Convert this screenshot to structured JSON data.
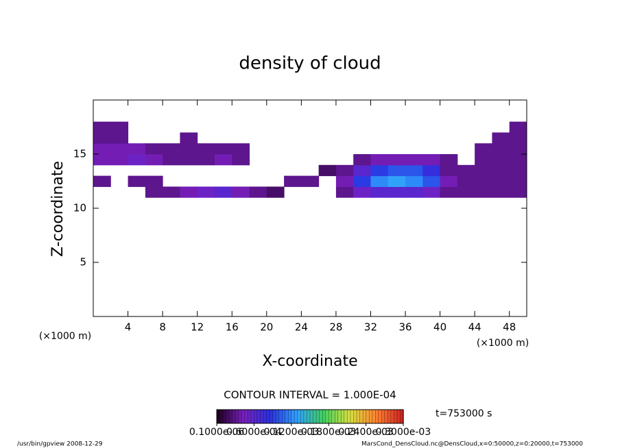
{
  "chart_data": {
    "type": "heatmap",
    "title": "density of cloud",
    "x_label": "X-coordinate",
    "y_label": "Z-coordinate",
    "x_unit": "(×1000 m)",
    "contour_interval": "CONTOUR INTERVAL = 1.000E-04",
    "time_label": "t=753000 s",
    "footer_left": "/usr/bin/gpview   2008-12-29",
    "footer_right": "MarsCond_DensCloud.nc@DensCloud,x=0:50000,z=0:20000,t=753000",
    "xlim": [
      0,
      50
    ],
    "xticks": [
      4,
      8,
      12,
      16,
      20,
      24,
      28,
      32,
      36,
      40,
      44,
      48
    ],
    "ylim": [
      0,
      20
    ],
    "yticks": [
      5,
      10,
      15
    ],
    "x": [
      1,
      3,
      5,
      7,
      9,
      11,
      13,
      15,
      17,
      19,
      21,
      23,
      25,
      27,
      29,
      31,
      33,
      35,
      37,
      39,
      41,
      43,
      45,
      47,
      49
    ],
    "y": [
      11.5,
      12.5,
      13.5,
      14.5,
      15.5,
      16.5,
      17.5
    ],
    "values": [
      [
        null,
        null,
        null,
        3e-05,
        3e-05,
        4e-05,
        5e-05,
        6e-05,
        4e-05,
        3e-05,
        2e-05,
        null,
        null,
        null,
        3e-05,
        5e-05,
        6e-05,
        6e-05,
        6e-05,
        5e-05,
        3e-05,
        3e-05,
        3e-05,
        3e-05,
        3e-05
      ],
      [
        3e-05,
        null,
        3e-05,
        3e-05,
        null,
        null,
        null,
        null,
        null,
        null,
        null,
        3e-05,
        3e-05,
        null,
        4e-05,
        9e-05,
        0.00012,
        0.00013,
        0.00012,
        0.0001,
        4e-05,
        3e-05,
        3e-05,
        3e-05,
        3e-05
      ],
      [
        null,
        null,
        null,
        null,
        null,
        null,
        null,
        null,
        null,
        null,
        null,
        null,
        null,
        2e-05,
        3e-05,
        6e-05,
        9e-05,
        0.0001,
        0.0001,
        8e-05,
        3e-05,
        3e-05,
        3e-05,
        3e-05,
        3e-05
      ],
      [
        4e-05,
        4e-05,
        5e-05,
        4e-05,
        3e-05,
        3e-05,
        3e-05,
        4e-05,
        3e-05,
        null,
        null,
        null,
        null,
        null,
        null,
        3e-05,
        4e-05,
        4e-05,
        4e-05,
        4e-05,
        3e-05,
        null,
        3e-05,
        3e-05,
        3e-05
      ],
      [
        4e-05,
        4e-05,
        4e-05,
        3e-05,
        3e-05,
        3e-05,
        3e-05,
        3e-05,
        3e-05,
        null,
        null,
        null,
        null,
        null,
        null,
        null,
        null,
        null,
        null,
        null,
        null,
        null,
        3e-05,
        3e-05,
        3e-05
      ],
      [
        3e-05,
        3e-05,
        null,
        null,
        null,
        3e-05,
        null,
        null,
        null,
        null,
        null,
        null,
        null,
        null,
        null,
        null,
        null,
        null,
        null,
        null,
        null,
        null,
        null,
        3e-05,
        3e-05
      ],
      [
        3e-05,
        3e-05,
        null,
        null,
        null,
        null,
        null,
        null,
        null,
        null,
        null,
        null,
        null,
        null,
        null,
        null,
        null,
        null,
        null,
        null,
        null,
        null,
        null,
        null,
        3e-05
      ]
    ],
    "clim": [
      0,
      0.0003
    ],
    "colormap": [
      "#1a001a",
      "#7a1fc0",
      "#2a30e0",
      "#30a0ff",
      "#40d060",
      "#d8e040",
      "#ff8030",
      "#d02020"
    ],
    "colorbar_ticks": [
      {
        "value": 1e-07,
        "label": "0.1000e-06"
      },
      {
        "value": 6e-05,
        "label": "0.6000e-04"
      },
      {
        "value": 0.00012,
        "label": "0.1200e-03"
      },
      {
        "value": 0.00018,
        "label": "0.1800e-03"
      },
      {
        "value": 0.00024,
        "label": "0.2400e-03"
      },
      {
        "value": 0.0003,
        "label": "0.3000e-03"
      }
    ]
  }
}
